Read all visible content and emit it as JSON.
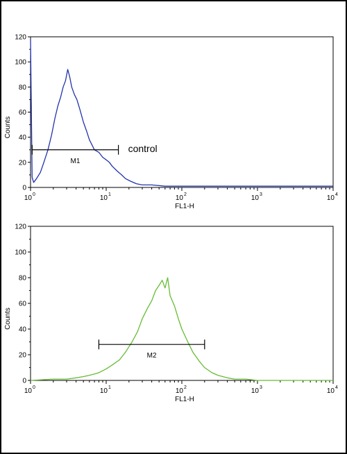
{
  "chart_data": [
    {
      "type": "line",
      "title": "",
      "xlabel": "FL1-H",
      "ylabel": "Counts",
      "x_scale": "log",
      "xlim": [
        1,
        10000
      ],
      "ylim": [
        0,
        120
      ],
      "x_ticks": [
        {
          "base": "10",
          "exp": "0"
        },
        {
          "base": "10",
          "exp": "1"
        },
        {
          "base": "10",
          "exp": "2"
        },
        {
          "base": "10",
          "exp": "3"
        },
        {
          "base": "10",
          "exp": "4"
        }
      ],
      "y_ticks": [
        "0",
        "20",
        "40",
        "60",
        "80",
        "100",
        "120"
      ],
      "grid": false,
      "series": [
        {
          "color": "#2233aa",
          "x": [
            1.0,
            1.05,
            1.1,
            1.2,
            1.35,
            1.5,
            1.7,
            1.9,
            2.1,
            2.3,
            2.5,
            2.7,
            2.9,
            3.1,
            3.3,
            3.5,
            3.8,
            4.1,
            4.5,
            5.0,
            5.5,
            6.0,
            7.0,
            8.0,
            9.0,
            10.0,
            11.0,
            12.0,
            14.0,
            16.0,
            18.0,
            21.0,
            25.0,
            30.0,
            40.0,
            60.0,
            100.0,
            200.0,
            500.0,
            1000.0,
            2000.0,
            5000.0,
            10000.0
          ],
          "y": [
            118,
            8,
            4,
            7,
            12,
            20,
            30,
            42,
            55,
            65,
            72,
            80,
            85,
            94,
            88,
            80,
            74,
            70,
            62,
            52,
            45,
            38,
            30,
            28,
            24,
            22,
            20,
            17,
            13,
            10,
            7,
            5,
            3,
            2,
            2,
            1,
            1,
            1,
            1,
            1,
            1,
            1,
            1
          ]
        }
      ],
      "markers": [
        {
          "label": "M1",
          "x_start": 1.05,
          "x_end": 14.5,
          "y": 30
        }
      ],
      "annotations": [
        "control"
      ]
    },
    {
      "type": "line",
      "title": "",
      "xlabel": "FL1-H",
      "ylabel": "Counts",
      "x_scale": "log",
      "xlim": [
        1,
        10000
      ],
      "ylim": [
        0,
        120
      ],
      "x_ticks": [
        {
          "base": "10",
          "exp": "0"
        },
        {
          "base": "10",
          "exp": "1"
        },
        {
          "base": "10",
          "exp": "2"
        },
        {
          "base": "10",
          "exp": "3"
        },
        {
          "base": "10",
          "exp": "4"
        }
      ],
      "y_ticks": [
        "0",
        "20",
        "40",
        "60",
        "80",
        "100",
        "120"
      ],
      "grid": false,
      "series": [
        {
          "color": "#66bb33",
          "x": [
            1.0,
            2.0,
            3.0,
            4.0,
            5.0,
            6.0,
            7.0,
            8.0,
            10.0,
            12.0,
            15.0,
            18.0,
            22.0,
            26.0,
            30.0,
            35.0,
            40.0,
            45.0,
            50.0,
            55.0,
            60.0,
            65.0,
            70.0,
            80.0,
            90.0,
            100.0,
            120.0,
            140.0,
            170.0,
            200.0,
            250.0,
            300.0,
            400.0,
            500.0,
            700.0,
            1000.0,
            2000.0,
            5000.0,
            10000.0
          ],
          "y": [
            0,
            1,
            1,
            2,
            3,
            4,
            5,
            6,
            9,
            12,
            16,
            22,
            30,
            38,
            48,
            56,
            62,
            70,
            74,
            78,
            72,
            80,
            66,
            58,
            48,
            40,
            30,
            22,
            15,
            10,
            6,
            4,
            2,
            1,
            1,
            0,
            0,
            0,
            0
          ]
        }
      ],
      "markers": [
        {
          "label": "M2",
          "x_start": 8.0,
          "x_end": 200.0,
          "y": 28
        }
      ],
      "annotations": []
    }
  ]
}
